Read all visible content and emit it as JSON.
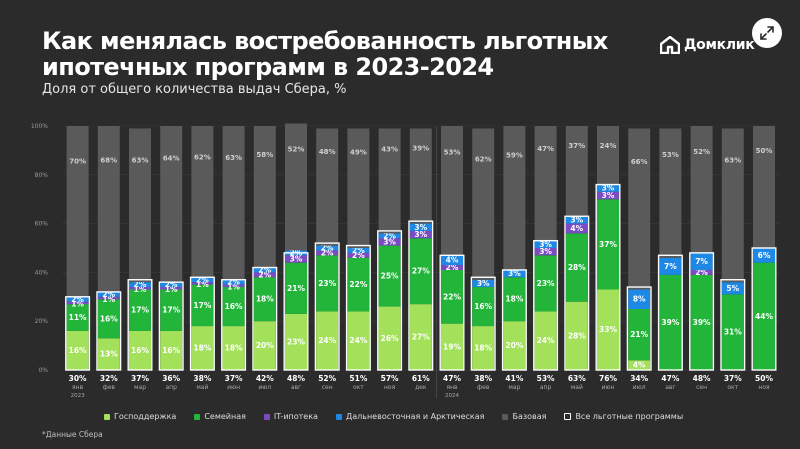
{
  "header": {
    "title": "Как менялась востребованность льготных ипотечных программ в 2023-2024",
    "subtitle": "Доля от общего количества выдач Сбера, %",
    "brand": "Домклик"
  },
  "footnote": "*Данные Сбера",
  "colors": {
    "background": "#2b2b2b",
    "gos": "#a3e15a",
    "family": "#22b53a",
    "it": "#7b4bc4",
    "far_east": "#1e88e5",
    "base": "#5a5a5a",
    "total_outline": "#ffffff"
  },
  "chart_data": {
    "type": "bar",
    "stacked": true,
    "y_ticks": [
      "0%",
      "20%",
      "40%",
      "60%",
      "80%",
      "100%"
    ],
    "ylim": [
      0,
      100
    ],
    "categories": [
      "янв",
      "фев",
      "мар",
      "апр",
      "май",
      "июн",
      "июл",
      "авг",
      "сен",
      "окт",
      "ноя",
      "дек",
      "янв",
      "фев",
      "мар",
      "апр",
      "май",
      "июн",
      "июл",
      "авг",
      "сен",
      "окт",
      "ноя"
    ],
    "year_labels": [
      {
        "index": 0,
        "label": "2023"
      },
      {
        "index": 12,
        "label": "2024"
      }
    ],
    "series": [
      {
        "name": "Господдержка",
        "key": "gos",
        "values": [
          16,
          13,
          16,
          16,
          18,
          18,
          20,
          23,
          24,
          24,
          26,
          27,
          19,
          18,
          20,
          24,
          28,
          33,
          4,
          0,
          0,
          0,
          0
        ],
        "labels": [
          "16%",
          "13%",
          "16%",
          "16%",
          "18%",
          "18%",
          "20%",
          "23%",
          "24%",
          "24%",
          "26%",
          "27%",
          "19%",
          "18%",
          "20%",
          "24%",
          "28%",
          "33%",
          "4%",
          "",
          "",
          "",
          ""
        ]
      },
      {
        "name": "Семейная",
        "key": "family",
        "values": [
          11,
          16,
          17,
          17,
          17,
          16,
          18,
          21,
          23,
          22,
          25,
          27,
          22,
          16,
          18,
          23,
          28,
          37,
          21,
          39,
          39,
          31,
          44
        ],
        "labels": [
          "11%",
          "16%",
          "17%",
          "17%",
          "17%",
          "16%",
          "18%",
          "21%",
          "23%",
          "22%",
          "25%",
          "27%",
          "22%",
          "16%",
          "18%",
          "23%",
          "28%",
          "37%",
          "21%",
          "39%",
          "39%",
          "31%",
          "44%"
        ]
      },
      {
        "name": "IT-ипотека",
        "key": "it",
        "values": [
          1,
          1,
          1,
          1,
          1,
          1,
          2,
          3,
          2,
          2,
          3,
          3,
          2,
          0,
          0,
          3,
          4,
          3,
          0,
          0,
          2,
          0,
          0
        ],
        "labels": [
          "1%",
          "1%",
          "1%",
          "1%",
          "1%",
          "1%",
          "2%",
          "3%",
          "2%",
          "2%",
          "3%",
          "3%",
          "2%",
          "",
          "",
          "3%",
          "4%",
          "3%",
          "",
          "",
          "2%",
          "",
          ""
        ]
      },
      {
        "name": "Дальневосточная и Арктическая",
        "key": "far_east",
        "values": [
          2,
          2,
          2,
          2,
          2,
          2,
          2,
          2,
          2,
          2,
          2,
          3,
          4,
          3,
          3,
          3,
          3,
          3,
          8,
          7,
          7,
          5,
          6
        ],
        "labels": [
          "2%",
          "2%",
          "2%",
          "2%",
          "2%",
          "2%",
          "2%",
          "2%",
          "2%",
          "2%",
          "2%",
          "3%",
          "4%",
          "3%",
          "3%",
          "3%",
          "3%",
          "3%",
          "8%",
          "7%",
          "7%",
          "5%",
          "6%"
        ]
      },
      {
        "name": "Базовая",
        "key": "base",
        "values": [
          70,
          68,
          63,
          64,
          62,
          63,
          58,
          52,
          48,
          49,
          43,
          39,
          53,
          62,
          59,
          47,
          37,
          24,
          66,
          53,
          52,
          63,
          50
        ],
        "labels": [
          "70%",
          "68%",
          "63%",
          "64%",
          "62%",
          "63%",
          "58%",
          "52%",
          "48%",
          "49%",
          "43%",
          "39%",
          "53%",
          "62%",
          "59%",
          "47%",
          "37%",
          "24%",
          "66%",
          "53%",
          "52%",
          "63%",
          "50%"
        ]
      }
    ],
    "totals": {
      "name": "Все льготные программы",
      "values": [
        30,
        32,
        37,
        36,
        38,
        37,
        42,
        48,
        52,
        51,
        57,
        61,
        47,
        38,
        41,
        53,
        63,
        76,
        34,
        47,
        48,
        37,
        50
      ],
      "labels": [
        "30%",
        "32%",
        "37%",
        "36%",
        "38%",
        "37%",
        "42%",
        "48%",
        "52%",
        "51%",
        "57%",
        "61%",
        "47%",
        "38%",
        "41%",
        "53%",
        "63%",
        "76%",
        "34%",
        "47%",
        "48%",
        "37%",
        "50%"
      ]
    }
  }
}
